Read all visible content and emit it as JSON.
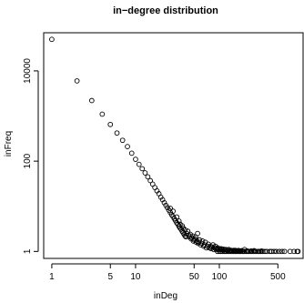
{
  "chart_data": {
    "type": "scatter",
    "title": "in−degree distribution",
    "xlabel": "inDeg",
    "ylabel": "inFreq",
    "x_scale": "log",
    "y_scale": "log",
    "xlim": [
      0.8,
      1000
    ],
    "ylim": [
      0.7,
      70000
    ],
    "x_ticks": [
      {
        "value": 1,
        "label": "1"
      },
      {
        "value": 5,
        "label": "5"
      },
      {
        "value": 10,
        "label": "10"
      },
      {
        "value": 50,
        "label": "50"
      },
      {
        "value": 100,
        "label": "100"
      },
      {
        "value": 500,
        "label": "500"
      }
    ],
    "y_ticks": [
      {
        "value": 1,
        "label": "1"
      },
      {
        "value": 100,
        "label": "100"
      },
      {
        "value": 10000,
        "label": "10000"
      }
    ],
    "marker": "open-circle",
    "grid": false,
    "points": [
      [
        1,
        50000
      ],
      [
        2,
        6000
      ],
      [
        3,
        2200
      ],
      [
        4,
        1100
      ],
      [
        5,
        650
      ],
      [
        6,
        420
      ],
      [
        7,
        290
      ],
      [
        8,
        210
      ],
      [
        9,
        150
      ],
      [
        10,
        110
      ],
      [
        11,
        85
      ],
      [
        12,
        68
      ],
      [
        13,
        55
      ],
      [
        14,
        45
      ],
      [
        15,
        37
      ],
      [
        16,
        31
      ],
      [
        17,
        26
      ],
      [
        18,
        22
      ],
      [
        19,
        19
      ],
      [
        20,
        16
      ],
      [
        21,
        14
      ],
      [
        22,
        12
      ],
      [
        23,
        10.5
      ],
      [
        24,
        9.3
      ],
      [
        25,
        8.2
      ],
      [
        26,
        7.3
      ],
      [
        27,
        6.5
      ],
      [
        28,
        5.9
      ],
      [
        29,
        5.3
      ],
      [
        30,
        4.8
      ],
      [
        31,
        4.3
      ],
      [
        32,
        4.0
      ],
      [
        33,
        3.6
      ],
      [
        34,
        3.3
      ],
      [
        35,
        3.1
      ],
      [
        36,
        2.8
      ],
      [
        37,
        2.6
      ],
      [
        38,
        2.4
      ],
      [
        39,
        2.2
      ],
      [
        40,
        2.1
      ],
      [
        26,
        9.0
      ],
      [
        28,
        7.8
      ],
      [
        31,
        5.8
      ],
      [
        33,
        4.7
      ],
      [
        34,
        4.0
      ],
      [
        36,
        3.7
      ],
      [
        37,
        3.3
      ],
      [
        39,
        3.0
      ],
      [
        41,
        2.5
      ],
      [
        42,
        2.8
      ],
      [
        43,
        2.3
      ],
      [
        44,
        2.1
      ],
      [
        45,
        2.4
      ],
      [
        46,
        1.9
      ],
      [
        47,
        2.0
      ],
      [
        48,
        2.2
      ],
      [
        49,
        1.7
      ],
      [
        50,
        1.8
      ],
      [
        51,
        1.9
      ],
      [
        52,
        2.1
      ],
      [
        53,
        1.6
      ],
      [
        54,
        1.7
      ],
      [
        55,
        2.5
      ],
      [
        56,
        1.5
      ],
      [
        57,
        1.6
      ],
      [
        58,
        1.8
      ],
      [
        60,
        1.4
      ],
      [
        62,
        1.5
      ],
      [
        63,
        1.7
      ],
      [
        65,
        1.3
      ],
      [
        66,
        1.4
      ],
      [
        68,
        1.6
      ],
      [
        70,
        1.2
      ],
      [
        72,
        1.3
      ],
      [
        74,
        1.45
      ],
      [
        76,
        1.2
      ],
      [
        78,
        1.3
      ],
      [
        80,
        1.15
      ],
      [
        82,
        1.25
      ],
      [
        84,
        1.4
      ],
      [
        86,
        1.1
      ],
      [
        88,
        1.2
      ],
      [
        90,
        1.3
      ],
      [
        92,
        1.1
      ],
      [
        94,
        1.15
      ],
      [
        96,
        1.2
      ],
      [
        98,
        1.1
      ],
      [
        102,
        1.12
      ],
      [
        105,
        1.15
      ],
      [
        108,
        1.1
      ],
      [
        112,
        1.12
      ],
      [
        116,
        1.08
      ],
      [
        120,
        1.1
      ],
      [
        125,
        1.07
      ],
      [
        130,
        1.1
      ],
      [
        135,
        1.05
      ],
      [
        140,
        1.05
      ],
      [
        150,
        1.06
      ],
      [
        155,
        1.05
      ],
      [
        160,
        1.04
      ],
      [
        95,
        1.0
      ],
      [
        100,
        1.0
      ],
      [
        104,
        1.0
      ],
      [
        110,
        1.0
      ],
      [
        115,
        1.0
      ],
      [
        118,
        1.0
      ],
      [
        122,
        1.0
      ],
      [
        128,
        1.0
      ],
      [
        132,
        1.0
      ],
      [
        138,
        1.0
      ],
      [
        142,
        1.0
      ],
      [
        148,
        1.0
      ],
      [
        153,
        1.0
      ],
      [
        158,
        1.0
      ],
      [
        163,
        1.0
      ],
      [
        170,
        1.0
      ],
      [
        175,
        1.0
      ],
      [
        180,
        1.0
      ],
      [
        188,
        1.0
      ],
      [
        195,
        1.0
      ],
      [
        200,
        1.0
      ],
      [
        210,
        1.0
      ],
      [
        218,
        1.0
      ],
      [
        225,
        1.0
      ],
      [
        235,
        1.0
      ],
      [
        245,
        1.0
      ],
      [
        255,
        1.0
      ],
      [
        265,
        1.0
      ],
      [
        275,
        1.0
      ],
      [
        290,
        1.0
      ],
      [
        300,
        1.0
      ],
      [
        310,
        1.0
      ],
      [
        330,
        1.0
      ],
      [
        350,
        1.0
      ],
      [
        370,
        1.0
      ],
      [
        400,
        1.0
      ],
      [
        420,
        1.0
      ],
      [
        450,
        1.0
      ],
      [
        480,
        1.0
      ],
      [
        520,
        1.0
      ],
      [
        560,
        1.0
      ],
      [
        600,
        1.0
      ],
      [
        700,
        1.0
      ],
      [
        780,
        1.0
      ],
      [
        850,
        1.0
      ],
      [
        870,
        1.0
      ],
      [
        170,
        1.05
      ],
      [
        185,
        1.04
      ],
      [
        200,
        1.1
      ],
      [
        260,
        1.04
      ],
      [
        180,
        1.02
      ],
      [
        215,
        1.03
      ],
      [
        240,
        1.02
      ],
      [
        320,
        1.02
      ]
    ]
  }
}
